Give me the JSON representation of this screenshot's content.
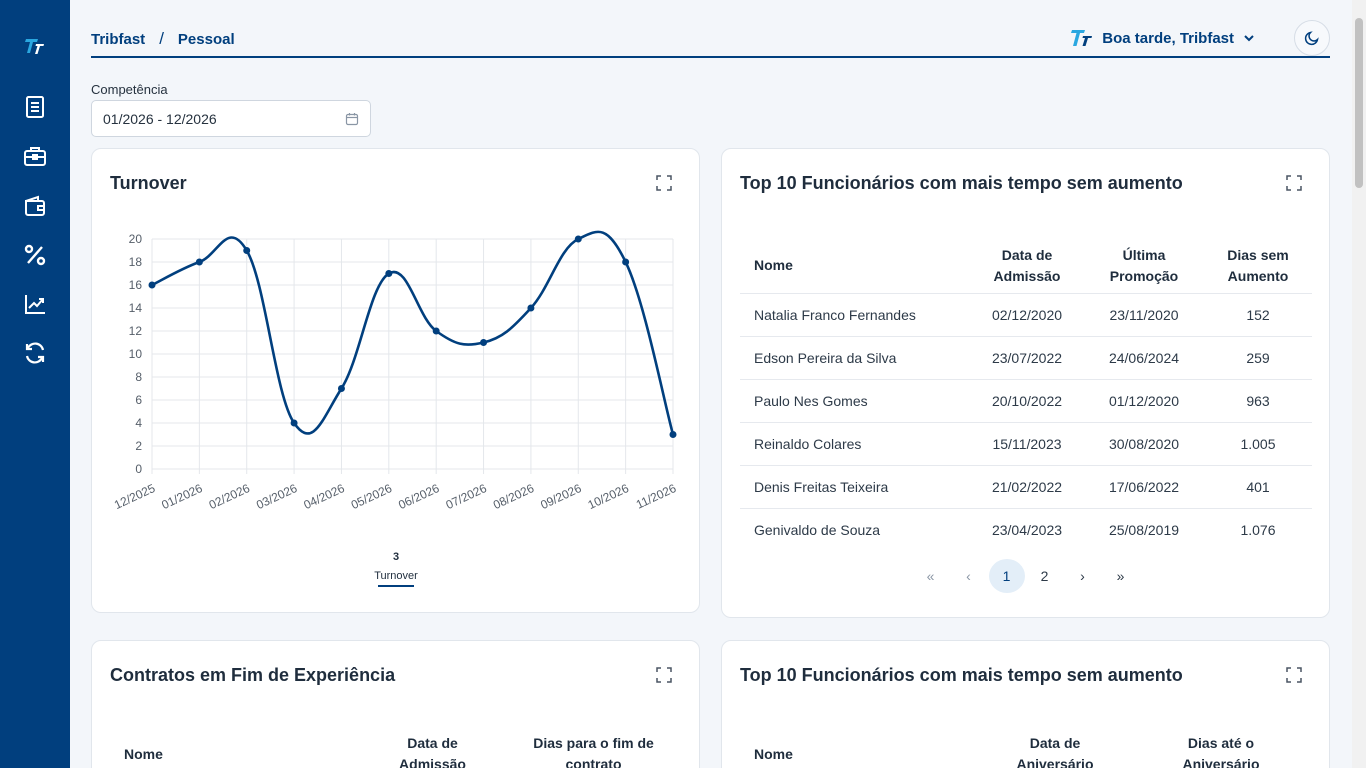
{
  "sidebar": {
    "logo_icon": "tribfast-logo",
    "items": [
      {
        "icon": "document-icon"
      },
      {
        "icon": "briefcase-icon"
      },
      {
        "icon": "wallet-icon"
      },
      {
        "icon": "percent-icon"
      },
      {
        "icon": "trend-chart-icon"
      },
      {
        "icon": "refresh-icon"
      }
    ]
  },
  "header": {
    "breadcrumb": [
      "Tribfast",
      "/",
      "Pessoal"
    ],
    "greeting": "Boa tarde, Tribfast"
  },
  "filter": {
    "label": "Competência",
    "value": "01/2026 - 12/2026"
  },
  "turnover": {
    "title": "Turnover",
    "legend_value": "3",
    "legend_label": "Turnover"
  },
  "chart_data": {
    "type": "line",
    "title": "Turnover",
    "x": [
      "12/2025",
      "01/2026",
      "02/2026",
      "03/2026",
      "04/2026",
      "05/2026",
      "06/2026",
      "07/2026",
      "08/2026",
      "09/2026",
      "10/2026",
      "11/2026"
    ],
    "series": [
      {
        "name": "Turnover",
        "values": [
          16,
          18,
          19,
          4,
          7,
          17,
          12,
          11,
          14,
          20,
          18,
          3
        ]
      }
    ],
    "ylim": [
      0,
      20
    ],
    "yticks": [
      0,
      2,
      4,
      6,
      8,
      10,
      12,
      14,
      16,
      18,
      20
    ],
    "grid": true,
    "legend": "bottom",
    "color": "#013f7e"
  },
  "top10": {
    "title": "Top 10 Funcionários com mais tempo sem aumento",
    "headers": [
      [
        "Nome"
      ],
      [
        "Data de",
        "Admissão"
      ],
      [
        "Última",
        "Promoção"
      ],
      [
        "Dias sem",
        "Aumento"
      ]
    ],
    "rows": [
      [
        "Natalia Franco Fernandes",
        "02/12/2020",
        "23/11/2020",
        "152"
      ],
      [
        "Edson Pereira da Silva",
        "23/07/2022",
        "24/06/2024",
        "259"
      ],
      [
        "Paulo Nes Gomes",
        "20/10/2022",
        "01/12/2020",
        "963"
      ],
      [
        "Reinaldo Colares",
        "15/11/2023",
        "30/08/2020",
        "1.005"
      ],
      [
        "Denis Freitas Teixeira",
        "21/02/2022",
        "17/06/2022",
        "401"
      ],
      [
        "Genivaldo de Souza",
        "23/04/2023",
        "25/08/2019",
        "1.076"
      ]
    ],
    "pager": {
      "first": "«",
      "prev": "‹",
      "pages": [
        "1",
        "2"
      ],
      "active": "1",
      "next": "›",
      "last": "»"
    }
  },
  "contracts": {
    "title": "Contratos em Fim de Experiência",
    "headers": [
      [
        "Nome"
      ],
      [
        "Data de",
        "Admissão"
      ],
      [
        "Dias para o fim de",
        "contrato"
      ]
    ]
  },
  "birthdays": {
    "title": "Top 10 Funcionários com mais tempo sem aumento",
    "headers": [
      [
        "Nome"
      ],
      [
        "Data de",
        "Aniversário"
      ],
      [
        "Dias até o",
        "Aniversário"
      ]
    ]
  },
  "colors": {
    "primary": "#013f7e",
    "accent": "#2aa7e0"
  }
}
